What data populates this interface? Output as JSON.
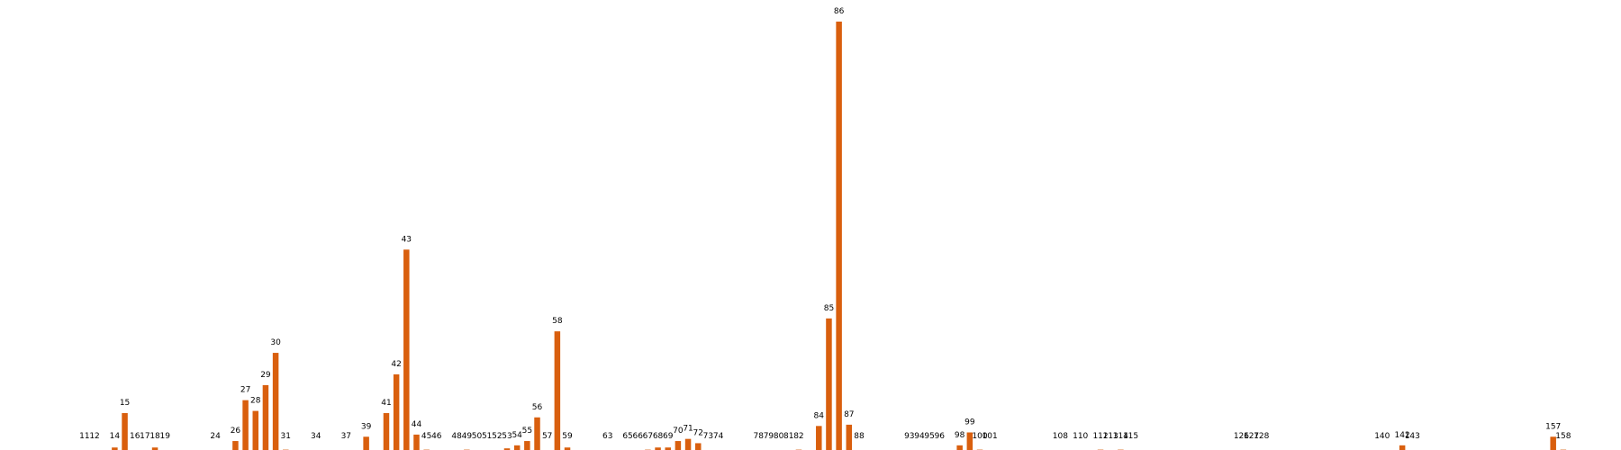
{
  "chart_data": {
    "type": "bar",
    "title": "",
    "xlabel": "",
    "ylabel": "",
    "ylim": [
      0,
      100
    ],
    "grid": false,
    "legend": "none",
    "bar_color": "#d95f0e",
    "categories": [
      "11",
      "12",
      "14",
      "15",
      "16",
      "17",
      "18",
      "19",
      "24",
      "26",
      "27",
      "28",
      "29",
      "30",
      "31",
      "34",
      "37",
      "39",
      "41",
      "42",
      "43",
      "44",
      "45",
      "46",
      "48",
      "49",
      "50",
      "51",
      "52",
      "53",
      "54",
      "55",
      "56",
      "57",
      "58",
      "59",
      "63",
      "65",
      "66",
      "67",
      "68",
      "69",
      "70",
      "71",
      "72",
      "73",
      "74",
      "78",
      "79",
      "80",
      "81",
      "82",
      "84",
      "85",
      "86",
      "87",
      "88",
      "93",
      "94",
      "95",
      "96",
      "98",
      "99",
      "100",
      "101",
      "108",
      "110",
      "112",
      "113",
      "114",
      "115",
      "126",
      "127",
      "128",
      "140",
      "142",
      "143",
      "157",
      "158"
    ],
    "values": [
      0,
      0,
      1,
      9,
      0,
      0,
      1,
      0,
      0,
      2.5,
      12,
      9.5,
      15.5,
      23,
      0.5,
      0,
      0,
      3.5,
      9,
      18,
      47,
      4,
      0.5,
      0.3,
      0,
      0.5,
      0,
      0.3,
      0.3,
      0.8,
      1.5,
      2.5,
      8,
      0,
      28,
      1,
      0.3,
      0.3,
      0.3,
      0.5,
      1,
      1,
      2.5,
      3,
      2,
      0.3,
      0.3,
      0,
      0,
      0.3,
      0.3,
      0.5,
      6,
      31,
      100,
      6.3,
      0.3,
      0,
      0,
      0,
      0.3,
      1.5,
      4.5,
      0.5,
      0,
      0,
      0,
      0.5,
      0.3,
      0.5,
      0,
      0.3,
      0.3,
      0.3,
      0.3,
      1.5,
      0.3,
      3.5,
      0.5
    ]
  }
}
